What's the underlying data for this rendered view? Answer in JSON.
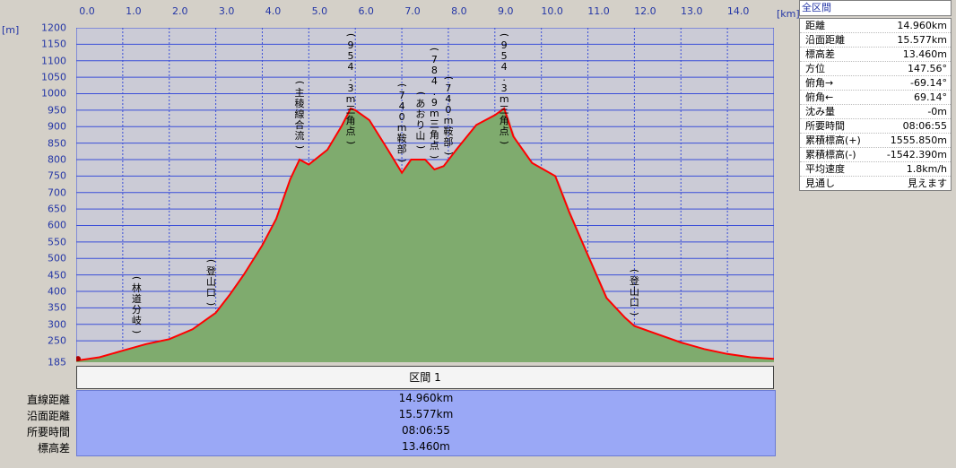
{
  "units": {
    "x": "[km]",
    "y": "[m]"
  },
  "x_ticks": [
    "0.0",
    "1.0",
    "2.0",
    "3.0",
    "4.0",
    "5.0",
    "6.0",
    "7.0",
    "8.0",
    "9.0",
    "10.0",
    "11.0",
    "12.0",
    "13.0",
    "14.0"
  ],
  "y_ticks": [
    "1200",
    "1150",
    "1100",
    "1050",
    "1000",
    "950",
    "900",
    "850",
    "800",
    "750",
    "700",
    "650",
    "600",
    "550",
    "500",
    "450",
    "400",
    "350",
    "300",
    "250",
    "185"
  ],
  "chart_data": {
    "type": "area",
    "xlabel": "[km]",
    "ylabel": "[m]",
    "xlim": [
      0,
      15.0
    ],
    "ylim": [
      185,
      1200
    ],
    "x": [
      0.0,
      0.5,
      1.0,
      1.5,
      2.0,
      2.5,
      2.9,
      3.0,
      3.3,
      3.6,
      4.0,
      4.3,
      4.6,
      4.8,
      5.0,
      5.4,
      5.7,
      5.9,
      6.0,
      6.3,
      6.7,
      7.0,
      7.2,
      7.5,
      7.7,
      7.9,
      8.2,
      8.6,
      9.0,
      9.2,
      9.4,
      9.8,
      10.3,
      10.6,
      11.0,
      11.4,
      11.8,
      12.0,
      12.5,
      13.0,
      13.5,
      14.0,
      14.5,
      15.0
    ],
    "y": [
      190,
      200,
      220,
      240,
      255,
      285,
      325,
      335,
      390,
      450,
      540,
      620,
      740,
      800,
      785,
      830,
      900,
      955,
      950,
      920,
      830,
      760,
      800,
      800,
      770,
      780,
      835,
      905,
      935,
      955,
      870,
      790,
      750,
      640,
      510,
      380,
      320,
      295,
      270,
      245,
      225,
      210,
      200,
      195
    ],
    "annotations": [
      {
        "x": 1.3,
        "label": "(林道分岐)"
      },
      {
        "x": 2.9,
        "label": "(登山口)"
      },
      {
        "x": 4.8,
        "label": "(主稜線合流)"
      },
      {
        "x": 5.9,
        "label": "(954.3m三角点)"
      },
      {
        "x": 7.0,
        "label": "(740m鞍部)"
      },
      {
        "x": 7.4,
        "label": "(あおり山)"
      },
      {
        "x": 7.7,
        "label": "(784.9m三角点)"
      },
      {
        "x": 8.0,
        "label": "(740m鞍部)"
      },
      {
        "x": 9.2,
        "label": "(954.3m三角点)"
      },
      {
        "x": 12.0,
        "label": "(登山口)"
      }
    ],
    "colors": {
      "area": "#7fab6e",
      "line": "#ff0000",
      "background": "#cbcbd6",
      "grid": "#3a4ed8"
    }
  },
  "panel": {
    "title": "全区間",
    "stats": [
      {
        "label": "距離",
        "value": "14.960km"
      },
      {
        "label": "沿面距離",
        "value": "15.577km"
      },
      {
        "label": "標高差",
        "value": "13.460m"
      },
      {
        "label": "方位",
        "value": "147.56°"
      },
      {
        "label": "俯角→",
        "value": "-69.14°"
      },
      {
        "label": "俯角←",
        "value": "69.14°"
      },
      {
        "label": "沈み量",
        "value": "-0m"
      },
      {
        "label": "所要時間",
        "value": "08:06:55"
      },
      {
        "label": "累積標高(+)",
        "value": "1555.850m"
      },
      {
        "label": "累積標高(-)",
        "value": "-1542.390m"
      },
      {
        "label": "平均速度",
        "value": "1.8km/h"
      },
      {
        "label": "見通し",
        "value": "見えます"
      }
    ]
  },
  "segment": {
    "header": "区間 1",
    "rows": [
      {
        "label": "直線距離",
        "value": "14.960km"
      },
      {
        "label": "沿面距離",
        "value": "15.577km"
      },
      {
        "label": "所要時間",
        "value": "08:06:55"
      },
      {
        "label": "標高差",
        "value": "13.460m"
      }
    ]
  }
}
